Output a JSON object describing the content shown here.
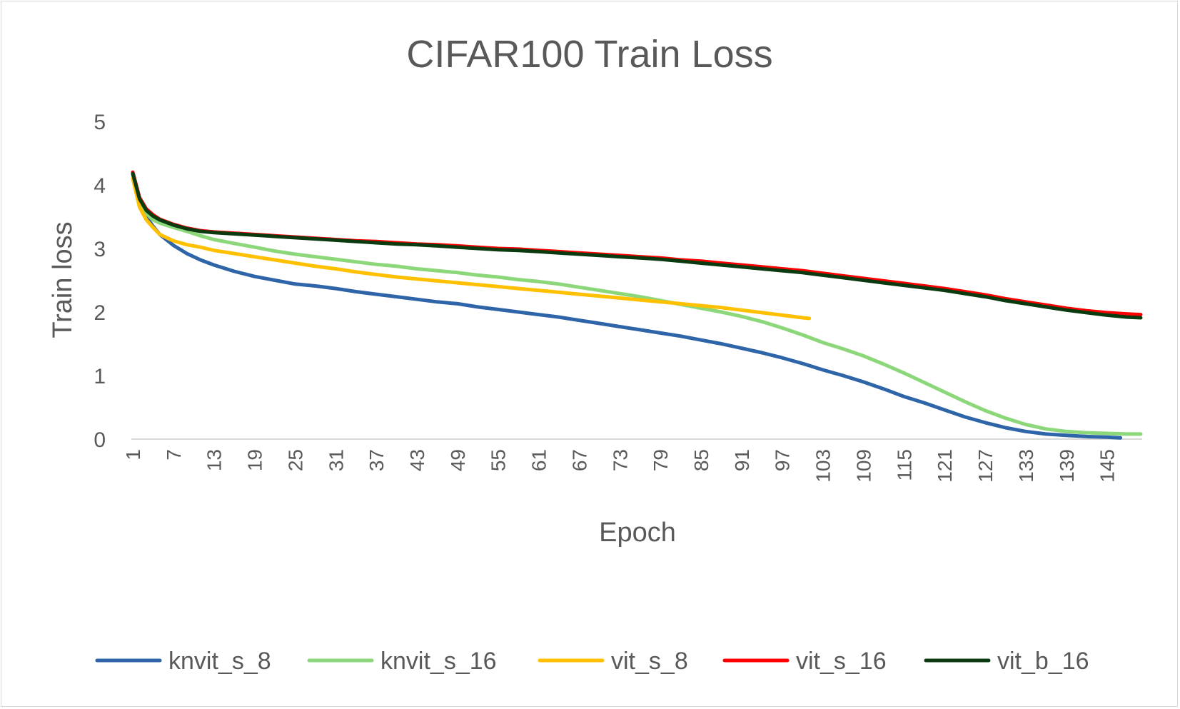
{
  "chart_data": {
    "type": "line",
    "title": "CIFAR100 Train Loss",
    "xlabel": "Epoch",
    "ylabel": "Train loss",
    "ylim": [
      0,
      5
    ],
    "yticks": [
      "0",
      "1",
      "2",
      "3",
      "4",
      "5"
    ],
    "x_range": [
      1,
      150
    ],
    "xtick_labels": [
      "1",
      "7",
      "13",
      "19",
      "25",
      "31",
      "37",
      "43",
      "49",
      "55",
      "61",
      "67",
      "73",
      "79",
      "85",
      "91",
      "97",
      "103",
      "109",
      "115",
      "121",
      "127",
      "133",
      "139",
      "145"
    ],
    "grid": false,
    "legend_position": "bottom",
    "series": [
      {
        "name": "knvit_s_8",
        "color": "#2e64a8",
        "points": [
          [
            1,
            4.1
          ],
          [
            2,
            3.75
          ],
          [
            3,
            3.5
          ],
          [
            4,
            3.35
          ],
          [
            5,
            3.22
          ],
          [
            7,
            3.05
          ],
          [
            9,
            2.92
          ],
          [
            11,
            2.82
          ],
          [
            13,
            2.74
          ],
          [
            16,
            2.64
          ],
          [
            19,
            2.56
          ],
          [
            22,
            2.5
          ],
          [
            25,
            2.44
          ],
          [
            28,
            2.41
          ],
          [
            31,
            2.37
          ],
          [
            34,
            2.32
          ],
          [
            37,
            2.28
          ],
          [
            40,
            2.24
          ],
          [
            43,
            2.2
          ],
          [
            46,
            2.16
          ],
          [
            49,
            2.13
          ],
          [
            52,
            2.08
          ],
          [
            55,
            2.04
          ],
          [
            58,
            2.0
          ],
          [
            61,
            1.96
          ],
          [
            64,
            1.92
          ],
          [
            67,
            1.87
          ],
          [
            70,
            1.82
          ],
          [
            73,
            1.77
          ],
          [
            76,
            1.72
          ],
          [
            79,
            1.67
          ],
          [
            82,
            1.62
          ],
          [
            85,
            1.56
          ],
          [
            88,
            1.5
          ],
          [
            91,
            1.43
          ],
          [
            94,
            1.36
          ],
          [
            97,
            1.28
          ],
          [
            100,
            1.19
          ],
          [
            103,
            1.09
          ],
          [
            106,
            1.0
          ],
          [
            109,
            0.9
          ],
          [
            112,
            0.79
          ],
          [
            115,
            0.67
          ],
          [
            118,
            0.57
          ],
          [
            121,
            0.46
          ],
          [
            124,
            0.35
          ],
          [
            127,
            0.26
          ],
          [
            130,
            0.18
          ],
          [
            133,
            0.12
          ],
          [
            136,
            0.08
          ],
          [
            139,
            0.06
          ],
          [
            142,
            0.04
          ],
          [
            145,
            0.03
          ],
          [
            147,
            0.02
          ]
        ]
      },
      {
        "name": "knvit_s_16",
        "color": "#8cd77a",
        "points": [
          [
            1,
            4.15
          ],
          [
            2,
            3.75
          ],
          [
            3,
            3.55
          ],
          [
            4,
            3.45
          ],
          [
            5,
            3.4
          ],
          [
            7,
            3.33
          ],
          [
            9,
            3.27
          ],
          [
            11,
            3.2
          ],
          [
            13,
            3.14
          ],
          [
            16,
            3.08
          ],
          [
            19,
            3.02
          ],
          [
            22,
            2.96
          ],
          [
            25,
            2.91
          ],
          [
            28,
            2.87
          ],
          [
            31,
            2.83
          ],
          [
            34,
            2.79
          ],
          [
            37,
            2.75
          ],
          [
            40,
            2.72
          ],
          [
            43,
            2.68
          ],
          [
            46,
            2.65
          ],
          [
            49,
            2.62
          ],
          [
            52,
            2.58
          ],
          [
            55,
            2.55
          ],
          [
            58,
            2.51
          ],
          [
            61,
            2.48
          ],
          [
            64,
            2.44
          ],
          [
            67,
            2.39
          ],
          [
            70,
            2.34
          ],
          [
            73,
            2.29
          ],
          [
            76,
            2.24
          ],
          [
            79,
            2.18
          ],
          [
            82,
            2.12
          ],
          [
            85,
            2.06
          ],
          [
            88,
            2.0
          ],
          [
            91,
            1.93
          ],
          [
            94,
            1.85
          ],
          [
            97,
            1.75
          ],
          [
            100,
            1.64
          ],
          [
            103,
            1.52
          ],
          [
            106,
            1.42
          ],
          [
            109,
            1.31
          ],
          [
            112,
            1.18
          ],
          [
            115,
            1.04
          ],
          [
            118,
            0.89
          ],
          [
            121,
            0.74
          ],
          [
            124,
            0.59
          ],
          [
            127,
            0.45
          ],
          [
            130,
            0.33
          ],
          [
            133,
            0.23
          ],
          [
            136,
            0.16
          ],
          [
            139,
            0.12
          ],
          [
            142,
            0.1
          ],
          [
            145,
            0.09
          ],
          [
            148,
            0.08
          ],
          [
            150,
            0.08
          ]
        ]
      },
      {
        "name": "vit_s_8",
        "color": "#ffc000",
        "points": [
          [
            1,
            4.1
          ],
          [
            2,
            3.65
          ],
          [
            3,
            3.45
          ],
          [
            4,
            3.33
          ],
          [
            5,
            3.22
          ],
          [
            7,
            3.12
          ],
          [
            9,
            3.06
          ],
          [
            11,
            3.02
          ],
          [
            13,
            2.97
          ],
          [
            16,
            2.92
          ],
          [
            19,
            2.87
          ],
          [
            22,
            2.82
          ],
          [
            25,
            2.77
          ],
          [
            28,
            2.72
          ],
          [
            31,
            2.68
          ],
          [
            34,
            2.63
          ],
          [
            37,
            2.59
          ],
          [
            40,
            2.55
          ],
          [
            43,
            2.52
          ],
          [
            46,
            2.49
          ],
          [
            49,
            2.46
          ],
          [
            52,
            2.43
          ],
          [
            55,
            2.4
          ],
          [
            58,
            2.37
          ],
          [
            61,
            2.34
          ],
          [
            64,
            2.31
          ],
          [
            67,
            2.28
          ],
          [
            70,
            2.25
          ],
          [
            73,
            2.22
          ],
          [
            76,
            2.19
          ],
          [
            79,
            2.16
          ],
          [
            82,
            2.13
          ],
          [
            85,
            2.1
          ],
          [
            88,
            2.07
          ],
          [
            91,
            2.03
          ],
          [
            94,
            1.99
          ],
          [
            97,
            1.95
          ],
          [
            100,
            1.91
          ],
          [
            101,
            1.9
          ]
        ]
      },
      {
        "name": "vit_s_16",
        "color": "#ff0000",
        "points": [
          [
            1,
            4.2
          ],
          [
            2,
            3.8
          ],
          [
            3,
            3.62
          ],
          [
            4,
            3.53
          ],
          [
            5,
            3.46
          ],
          [
            7,
            3.38
          ],
          [
            9,
            3.32
          ],
          [
            11,
            3.28
          ],
          [
            13,
            3.26
          ],
          [
            16,
            3.24
          ],
          [
            19,
            3.22
          ],
          [
            22,
            3.2
          ],
          [
            25,
            3.18
          ],
          [
            28,
            3.16
          ],
          [
            31,
            3.14
          ],
          [
            34,
            3.12
          ],
          [
            37,
            3.11
          ],
          [
            40,
            3.09
          ],
          [
            43,
            3.07
          ],
          [
            46,
            3.06
          ],
          [
            49,
            3.04
          ],
          [
            52,
            3.02
          ],
          [
            55,
            3.0
          ],
          [
            58,
            2.99
          ],
          [
            61,
            2.97
          ],
          [
            64,
            2.95
          ],
          [
            67,
            2.93
          ],
          [
            70,
            2.91
          ],
          [
            73,
            2.89
          ],
          [
            76,
            2.87
          ],
          [
            79,
            2.85
          ],
          [
            82,
            2.82
          ],
          [
            85,
            2.8
          ],
          [
            88,
            2.77
          ],
          [
            91,
            2.74
          ],
          [
            94,
            2.71
          ],
          [
            97,
            2.68
          ],
          [
            100,
            2.65
          ],
          [
            103,
            2.61
          ],
          [
            106,
            2.57
          ],
          [
            109,
            2.53
          ],
          [
            112,
            2.49
          ],
          [
            115,
            2.45
          ],
          [
            118,
            2.41
          ],
          [
            121,
            2.37
          ],
          [
            124,
            2.32
          ],
          [
            127,
            2.27
          ],
          [
            130,
            2.21
          ],
          [
            133,
            2.16
          ],
          [
            136,
            2.11
          ],
          [
            139,
            2.06
          ],
          [
            142,
            2.02
          ],
          [
            145,
            1.99
          ],
          [
            148,
            1.97
          ],
          [
            150,
            1.96
          ]
        ]
      },
      {
        "name": "vit_b_16",
        "color": "#0a3a0f",
        "points": [
          [
            1,
            4.18
          ],
          [
            2,
            3.78
          ],
          [
            3,
            3.6
          ],
          [
            4,
            3.51
          ],
          [
            5,
            3.45
          ],
          [
            7,
            3.37
          ],
          [
            9,
            3.31
          ],
          [
            11,
            3.27
          ],
          [
            13,
            3.25
          ],
          [
            16,
            3.23
          ],
          [
            19,
            3.21
          ],
          [
            22,
            3.19
          ],
          [
            25,
            3.17
          ],
          [
            28,
            3.15
          ],
          [
            31,
            3.13
          ],
          [
            34,
            3.11
          ],
          [
            37,
            3.09
          ],
          [
            40,
            3.07
          ],
          [
            43,
            3.06
          ],
          [
            46,
            3.04
          ],
          [
            49,
            3.02
          ],
          [
            52,
            3.0
          ],
          [
            55,
            2.98
          ],
          [
            58,
            2.97
          ],
          [
            61,
            2.95
          ],
          [
            64,
            2.93
          ],
          [
            67,
            2.91
          ],
          [
            70,
            2.89
          ],
          [
            73,
            2.87
          ],
          [
            76,
            2.85
          ],
          [
            79,
            2.83
          ],
          [
            82,
            2.8
          ],
          [
            85,
            2.77
          ],
          [
            88,
            2.74
          ],
          [
            91,
            2.71
          ],
          [
            94,
            2.68
          ],
          [
            97,
            2.65
          ],
          [
            100,
            2.62
          ],
          [
            103,
            2.58
          ],
          [
            106,
            2.54
          ],
          [
            109,
            2.5
          ],
          [
            112,
            2.46
          ],
          [
            115,
            2.42
          ],
          [
            118,
            2.38
          ],
          [
            121,
            2.34
          ],
          [
            124,
            2.29
          ],
          [
            127,
            2.24
          ],
          [
            130,
            2.18
          ],
          [
            133,
            2.13
          ],
          [
            136,
            2.08
          ],
          [
            139,
            2.03
          ],
          [
            142,
            1.99
          ],
          [
            145,
            1.95
          ],
          [
            148,
            1.92
          ],
          [
            150,
            1.91
          ]
        ]
      }
    ]
  }
}
